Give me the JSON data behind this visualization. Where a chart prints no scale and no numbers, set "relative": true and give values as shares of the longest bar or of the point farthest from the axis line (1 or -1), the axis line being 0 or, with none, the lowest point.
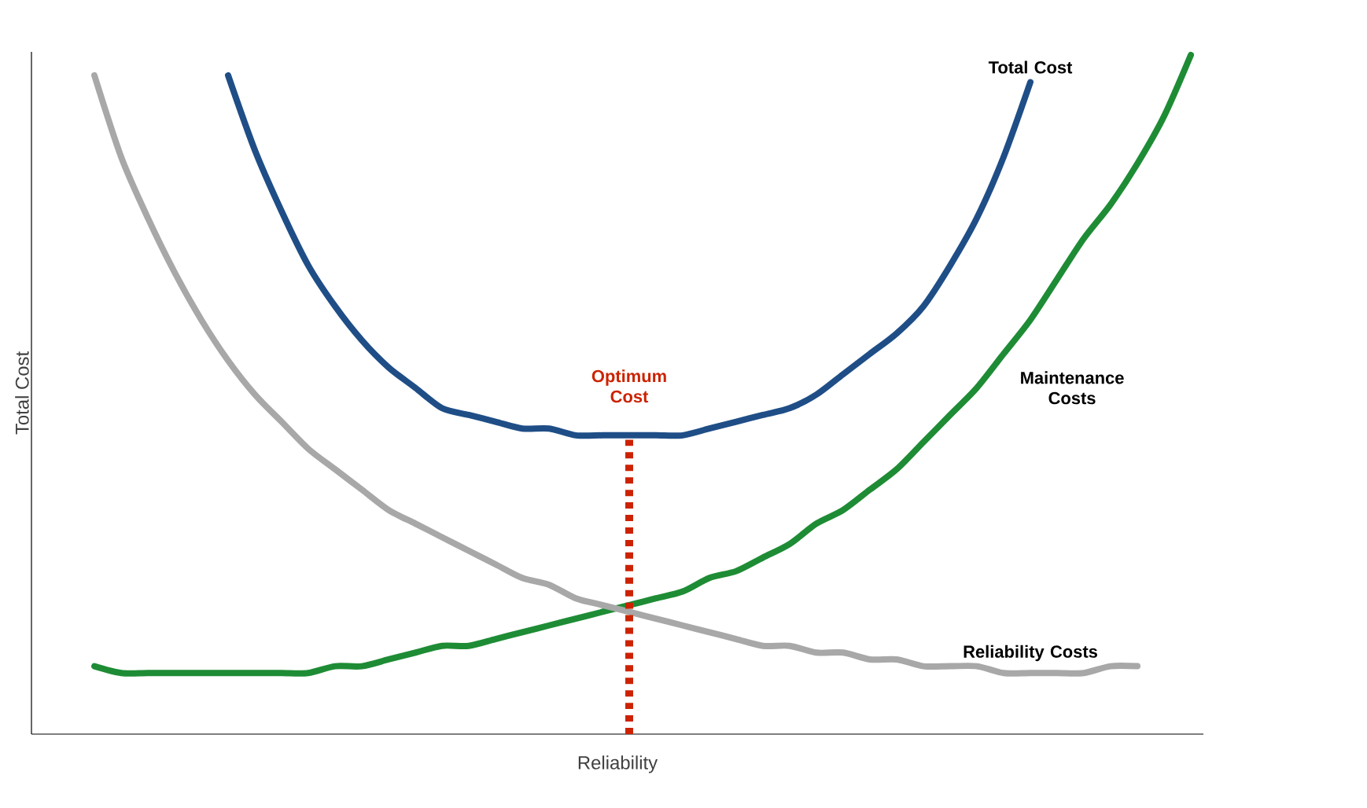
{
  "chart_data": {
    "type": "line",
    "relative": true,
    "xlabel": "Reliability",
    "ylabel": "Total Cost",
    "categories": [
      null,
      null,
      null,
      null,
      null,
      null,
      null,
      null,
      null,
      null,
      null,
      null,
      null,
      null,
      null,
      null,
      null,
      null,
      null,
      null,
      null,
      null,
      null,
      null,
      null,
      null,
      null,
      null,
      null,
      null,
      null,
      null,
      null,
      null,
      null,
      null,
      null,
      null,
      null,
      null,
      null,
      null
    ],
    "series": [
      {
        "name": "Total Cost",
        "color": "#1f4e87",
        "values": [
          null,
          null,
          null,
          null,
          null,
          0.97,
          0.86,
          0.77,
          0.69,
          0.63,
          0.58,
          0.54,
          0.51,
          0.48,
          0.47,
          0.46,
          0.45,
          0.45,
          0.44,
          0.44,
          0.44,
          0.44,
          0.44,
          0.45,
          0.46,
          0.47,
          0.48,
          0.5,
          0.53,
          0.56,
          0.59,
          0.63,
          0.69,
          0.76,
          0.85,
          0.96,
          null,
          null,
          null,
          null,
          null,
          null
        ]
      },
      {
        "name": "Maintenance Costs",
        "color": "#1e8c35",
        "values": [
          0.1,
          0.09,
          0.09,
          0.09,
          0.09,
          0.09,
          0.09,
          0.09,
          0.09,
          0.1,
          0.1,
          0.11,
          0.12,
          0.13,
          0.13,
          0.14,
          0.15,
          0.16,
          0.17,
          0.18,
          0.19,
          0.2,
          0.21,
          0.23,
          0.24,
          0.26,
          0.28,
          0.31,
          0.33,
          0.36,
          0.39,
          0.43,
          0.47,
          0.51,
          0.56,
          0.61,
          0.67,
          0.73,
          0.78,
          0.84,
          0.91,
          1.0
        ]
      },
      {
        "name": "Reliability Costs",
        "color": "#a8a8a8",
        "values": [
          0.97,
          0.85,
          0.76,
          0.68,
          0.61,
          0.55,
          0.5,
          0.46,
          0.42,
          0.39,
          0.36,
          0.33,
          0.31,
          0.29,
          0.27,
          0.25,
          0.23,
          0.22,
          0.2,
          0.19,
          0.18,
          0.17,
          0.16,
          0.15,
          0.14,
          0.13,
          0.13,
          0.12,
          0.12,
          0.11,
          0.11,
          0.1,
          0.1,
          0.1,
          0.09,
          0.09,
          0.09,
          0.09,
          0.1,
          0.1,
          null,
          null
        ]
      }
    ],
    "annotations": [
      "Optimum Cost"
    ],
    "marker": "none",
    "line_style": "solid"
  }
}
